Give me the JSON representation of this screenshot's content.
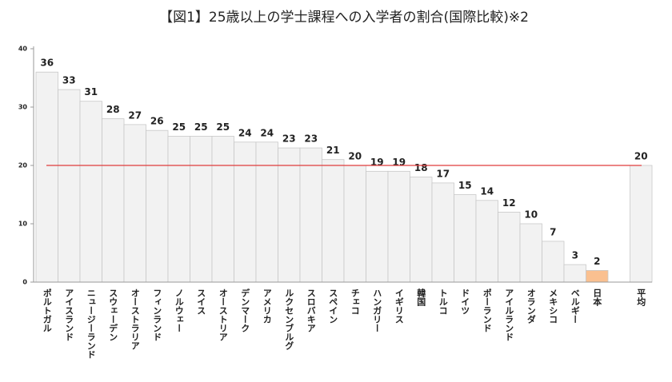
{
  "chart_data": {
    "type": "bar",
    "title": "【図1】25歳以上の学士課程への入学者の割合(国際比較)※2",
    "categories": [
      "ポルトガル",
      "アイスランド",
      "ニュージーランド",
      "スウェーデン",
      "オーストラリア",
      "フィンランド",
      "ノルウェー",
      "スイス",
      "オーストリア",
      "デンマーク",
      "アメリカ",
      "ルクセンブルグ",
      "スロバキア",
      "スペイン",
      "チェコ",
      "ハンガリー",
      "イギリス",
      "韓国",
      "トルコ",
      "ドイツ",
      "ポーランド",
      "アイルランド",
      "オランダ",
      "メキシコ",
      "ベルギー",
      "日本",
      null,
      "平均"
    ],
    "values": [
      36,
      33,
      31,
      28,
      27,
      26,
      25,
      25,
      25,
      24,
      24,
      23,
      23,
      21,
      20,
      19,
      19,
      18,
      17,
      15,
      14,
      12,
      10,
      7,
      3,
      2,
      null,
      20
    ],
    "colors": [
      "#f2f2f2",
      "#f2f2f2",
      "#f2f2f2",
      "#f2f2f2",
      "#f2f2f2",
      "#f2f2f2",
      "#f2f2f2",
      "#f2f2f2",
      "#f2f2f2",
      "#f2f2f2",
      "#f2f2f2",
      "#f2f2f2",
      "#f2f2f2",
      "#f2f2f2",
      "#f2f2f2",
      "#f2f2f2",
      "#f2f2f2",
      "#f2f2f2",
      "#f2f2f2",
      "#f2f2f2",
      "#f2f2f2",
      "#f2f2f2",
      "#f2f2f2",
      "#f2f2f2",
      "#f2f2f2",
      "#fac090",
      null,
      "#f2f2f2"
    ],
    "reference_line": {
      "value": 20,
      "color": "#e03c3c"
    },
    "ylim": [
      0,
      40
    ],
    "yticks": [
      0,
      10,
      20,
      30,
      40
    ],
    "grid": false
  }
}
